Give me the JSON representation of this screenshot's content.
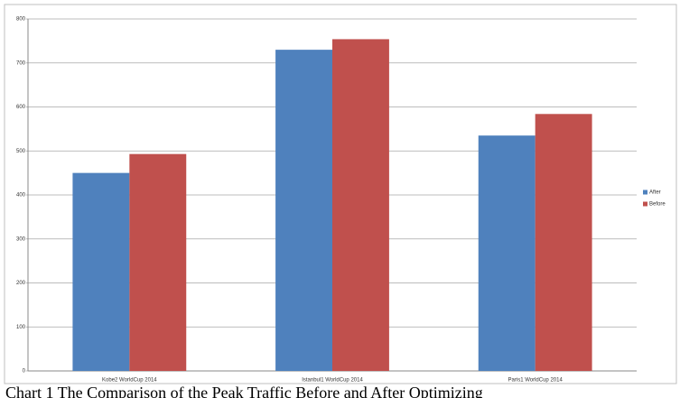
{
  "chart_data": {
    "type": "bar",
    "caption": "Chart 1 The Comparison of the Peak Traffic Before and After Optimizing",
    "categories": [
      "Kobe2 WorldCup 2014",
      "Istanbul1 WorldCup 2014",
      "Paris1 WorldCup 2014"
    ],
    "series": [
      {
        "name": "After",
        "color": "#4f81bd",
        "values": [
          450,
          730,
          535
        ]
      },
      {
        "name": "Before",
        "color": "#c0504d",
        "values": [
          493,
          754,
          584
        ]
      }
    ],
    "ylim": [
      0,
      800
    ],
    "yticks": [
      0,
      100,
      200,
      300,
      400,
      500,
      600,
      700,
      800
    ],
    "grid": true,
    "legend": "right"
  }
}
